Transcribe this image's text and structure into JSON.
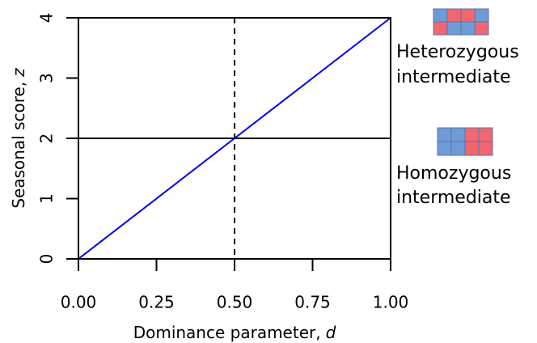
{
  "chart_data": {
    "type": "line",
    "xlabel": {
      "text": "Dominance parameter,",
      "variable": "d"
    },
    "ylabel": {
      "text": "Seasonal score,",
      "variable": "z"
    },
    "x": [
      0,
      1
    ],
    "series": [
      {
        "color": "#0000ee",
        "values": [
          0,
          4
        ]
      }
    ],
    "xlim": [
      0,
      1
    ],
    "xticks": [
      {
        "value": 0,
        "label": "0.00"
      },
      {
        "value": 0.25,
        "label": "0.25"
      },
      {
        "value": 0.5,
        "label": "0.50"
      },
      {
        "value": 0.75,
        "label": "0.75"
      },
      {
        "value": 1,
        "label": "1.00"
      }
    ],
    "ylim": [
      0,
      4
    ],
    "yticks": [
      0,
      1,
      2,
      3,
      4
    ],
    "hline": 2,
    "vline": 0.5,
    "annotations": [
      {
        "lines": [
          "Heterozygous",
          "intermediate"
        ],
        "color": "#0000ee"
      },
      {
        "lines": [
          "Homozygous",
          "intermediate"
        ],
        "color": "#000000"
      }
    ]
  }
}
